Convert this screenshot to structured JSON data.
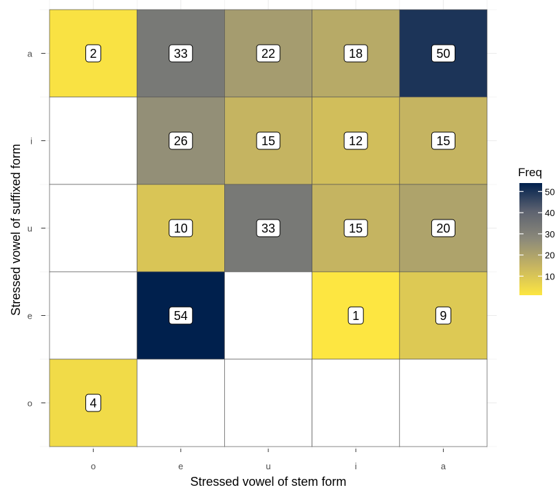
{
  "chart_data": {
    "type": "heatmap",
    "xlabel": "Stressed vowel of stem form",
    "ylabel": "Stressed vowel of suffixed form",
    "x_categories": [
      "o",
      "e",
      "u",
      "i",
      "a"
    ],
    "y_categories": [
      "a",
      "i",
      "u",
      "e",
      "o"
    ],
    "cells": [
      {
        "x": "o",
        "y": "a",
        "value": 2
      },
      {
        "x": "e",
        "y": "a",
        "value": 33
      },
      {
        "x": "u",
        "y": "a",
        "value": 22
      },
      {
        "x": "i",
        "y": "a",
        "value": 18
      },
      {
        "x": "a",
        "y": "a",
        "value": 50
      },
      {
        "x": "e",
        "y": "i",
        "value": 26
      },
      {
        "x": "u",
        "y": "i",
        "value": 15
      },
      {
        "x": "i",
        "y": "i",
        "value": 12
      },
      {
        "x": "a",
        "y": "i",
        "value": 15
      },
      {
        "x": "e",
        "y": "u",
        "value": 10
      },
      {
        "x": "u",
        "y": "u",
        "value": 33
      },
      {
        "x": "i",
        "y": "u",
        "value": 15
      },
      {
        "x": "a",
        "y": "u",
        "value": 20
      },
      {
        "x": "e",
        "y": "e",
        "value": 54
      },
      {
        "x": "i",
        "y": "e",
        "value": 1
      },
      {
        "x": "a",
        "y": "e",
        "value": 9
      },
      {
        "x": "o",
        "y": "o",
        "value": 4
      }
    ],
    "legend": {
      "title": "Freq",
      "placement": "right",
      "ticks": [
        10,
        20,
        30,
        40,
        50
      ],
      "range": [
        1,
        54
      ]
    },
    "colors": {
      "low": "#fde641",
      "mid_low": "#c8b660",
      "mid": "#8c8a7a",
      "mid_high": "#5d6270",
      "high": "#00204d",
      "empty_cell": "#ffffff",
      "cell_border": "#555555",
      "grid": "#ebebeb"
    },
    "grid": true
  }
}
